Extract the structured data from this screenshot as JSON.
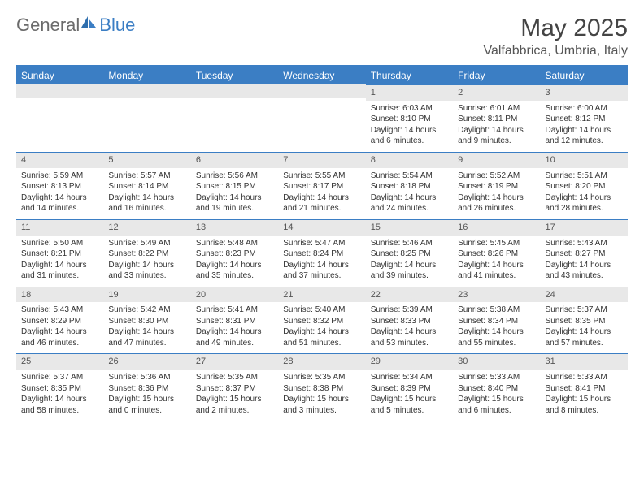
{
  "logo": {
    "general": "General",
    "blue": "Blue"
  },
  "title": "May 2025",
  "location": "Valfabbrica, Umbria, Italy",
  "colors": {
    "header_bg": "#3b7ec4",
    "header_text": "#ffffff",
    "daynum_bg": "#e8e8e8",
    "text": "#333333",
    "logo_general": "#6b6b6b",
    "logo_blue": "#3b7ec4"
  },
  "columns": [
    "Sunday",
    "Monday",
    "Tuesday",
    "Wednesday",
    "Thursday",
    "Friday",
    "Saturday"
  ],
  "weeks": [
    [
      null,
      null,
      null,
      null,
      {
        "d": "1",
        "sr": "6:03 AM",
        "ss": "8:10 PM",
        "dl": "14 hours and 6 minutes."
      },
      {
        "d": "2",
        "sr": "6:01 AM",
        "ss": "8:11 PM",
        "dl": "14 hours and 9 minutes."
      },
      {
        "d": "3",
        "sr": "6:00 AM",
        "ss": "8:12 PM",
        "dl": "14 hours and 12 minutes."
      }
    ],
    [
      {
        "d": "4",
        "sr": "5:59 AM",
        "ss": "8:13 PM",
        "dl": "14 hours and 14 minutes."
      },
      {
        "d": "5",
        "sr": "5:57 AM",
        "ss": "8:14 PM",
        "dl": "14 hours and 16 minutes."
      },
      {
        "d": "6",
        "sr": "5:56 AM",
        "ss": "8:15 PM",
        "dl": "14 hours and 19 minutes."
      },
      {
        "d": "7",
        "sr": "5:55 AM",
        "ss": "8:17 PM",
        "dl": "14 hours and 21 minutes."
      },
      {
        "d": "8",
        "sr": "5:54 AM",
        "ss": "8:18 PM",
        "dl": "14 hours and 24 minutes."
      },
      {
        "d": "9",
        "sr": "5:52 AM",
        "ss": "8:19 PM",
        "dl": "14 hours and 26 minutes."
      },
      {
        "d": "10",
        "sr": "5:51 AM",
        "ss": "8:20 PM",
        "dl": "14 hours and 28 minutes."
      }
    ],
    [
      {
        "d": "11",
        "sr": "5:50 AM",
        "ss": "8:21 PM",
        "dl": "14 hours and 31 minutes."
      },
      {
        "d": "12",
        "sr": "5:49 AM",
        "ss": "8:22 PM",
        "dl": "14 hours and 33 minutes."
      },
      {
        "d": "13",
        "sr": "5:48 AM",
        "ss": "8:23 PM",
        "dl": "14 hours and 35 minutes."
      },
      {
        "d": "14",
        "sr": "5:47 AM",
        "ss": "8:24 PM",
        "dl": "14 hours and 37 minutes."
      },
      {
        "d": "15",
        "sr": "5:46 AM",
        "ss": "8:25 PM",
        "dl": "14 hours and 39 minutes."
      },
      {
        "d": "16",
        "sr": "5:45 AM",
        "ss": "8:26 PM",
        "dl": "14 hours and 41 minutes."
      },
      {
        "d": "17",
        "sr": "5:43 AM",
        "ss": "8:27 PM",
        "dl": "14 hours and 43 minutes."
      }
    ],
    [
      {
        "d": "18",
        "sr": "5:43 AM",
        "ss": "8:29 PM",
        "dl": "14 hours and 46 minutes."
      },
      {
        "d": "19",
        "sr": "5:42 AM",
        "ss": "8:30 PM",
        "dl": "14 hours and 47 minutes."
      },
      {
        "d": "20",
        "sr": "5:41 AM",
        "ss": "8:31 PM",
        "dl": "14 hours and 49 minutes."
      },
      {
        "d": "21",
        "sr": "5:40 AM",
        "ss": "8:32 PM",
        "dl": "14 hours and 51 minutes."
      },
      {
        "d": "22",
        "sr": "5:39 AM",
        "ss": "8:33 PM",
        "dl": "14 hours and 53 minutes."
      },
      {
        "d": "23",
        "sr": "5:38 AM",
        "ss": "8:34 PM",
        "dl": "14 hours and 55 minutes."
      },
      {
        "d": "24",
        "sr": "5:37 AM",
        "ss": "8:35 PM",
        "dl": "14 hours and 57 minutes."
      }
    ],
    [
      {
        "d": "25",
        "sr": "5:37 AM",
        "ss": "8:35 PM",
        "dl": "14 hours and 58 minutes."
      },
      {
        "d": "26",
        "sr": "5:36 AM",
        "ss": "8:36 PM",
        "dl": "15 hours and 0 minutes."
      },
      {
        "d": "27",
        "sr": "5:35 AM",
        "ss": "8:37 PM",
        "dl": "15 hours and 2 minutes."
      },
      {
        "d": "28",
        "sr": "5:35 AM",
        "ss": "8:38 PM",
        "dl": "15 hours and 3 minutes."
      },
      {
        "d": "29",
        "sr": "5:34 AM",
        "ss": "8:39 PM",
        "dl": "15 hours and 5 minutes."
      },
      {
        "d": "30",
        "sr": "5:33 AM",
        "ss": "8:40 PM",
        "dl": "15 hours and 6 minutes."
      },
      {
        "d": "31",
        "sr": "5:33 AM",
        "ss": "8:41 PM",
        "dl": "15 hours and 8 minutes."
      }
    ]
  ]
}
